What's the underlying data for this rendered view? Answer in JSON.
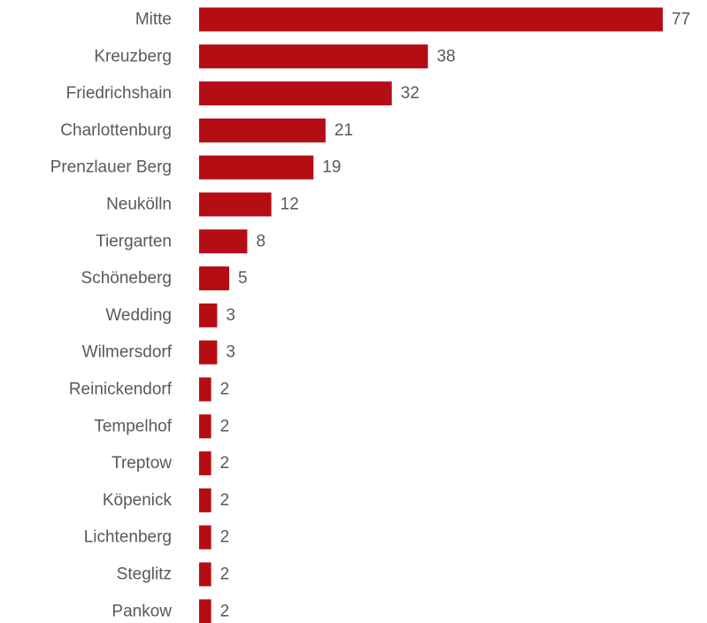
{
  "chart_data": {
    "type": "bar",
    "orientation": "horizontal",
    "categories": [
      "Mitte",
      "Kreuzberg",
      "Friedrichshain",
      "Charlottenburg",
      "Prenzlauer Berg",
      "Neukölln",
      "Tiergarten",
      "Schöneberg",
      "Wedding",
      "Wilmersdorf",
      "Reinickendorf",
      "Tempelhof",
      "Treptow",
      "Köpenick",
      "Lichtenberg",
      "Steglitz",
      "Pankow"
    ],
    "values": [
      77,
      38,
      32,
      21,
      19,
      12,
      8,
      5,
      3,
      3,
      2,
      2,
      2,
      2,
      2,
      2,
      2
    ],
    "title": "",
    "xlabel": "",
    "ylabel": "",
    "xlim": [
      0,
      77
    ],
    "grid": false,
    "legend": "none",
    "data_labels": true,
    "bar_color": "#b50d14",
    "label_color": "#595959"
  }
}
